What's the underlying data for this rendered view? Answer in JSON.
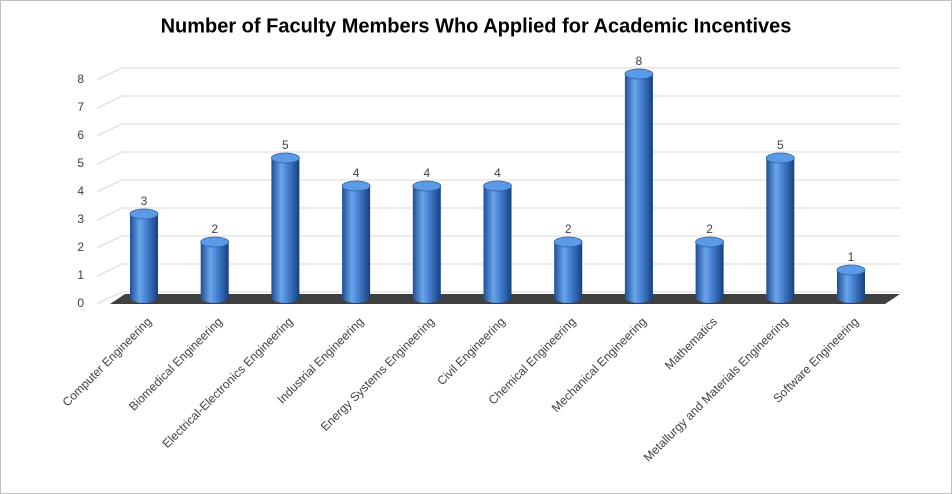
{
  "chart_data": {
    "type": "bar",
    "title": "Number of Faculty Members Who Applied for Academic Incentives",
    "categories": [
      "Computer Engineering",
      "Biomedical Engineering",
      "Electrical-Electronics Engineering",
      "Industrial Engineering",
      "Energy Systems Engineering",
      "Civil Engineering",
      "Chemical Engineering",
      "Mechanical Engineering",
      "Mathematics",
      "Metallurgy and Materials Engineering",
      "Software Engineering"
    ],
    "values": [
      3,
      2,
      5,
      4,
      4,
      4,
      2,
      8,
      2,
      5,
      1
    ],
    "color": "#4f8fdc",
    "ylim": [
      0,
      8
    ],
    "yticks": [
      0,
      1,
      2,
      3,
      4,
      5,
      6,
      7,
      8
    ],
    "grid": true
  }
}
